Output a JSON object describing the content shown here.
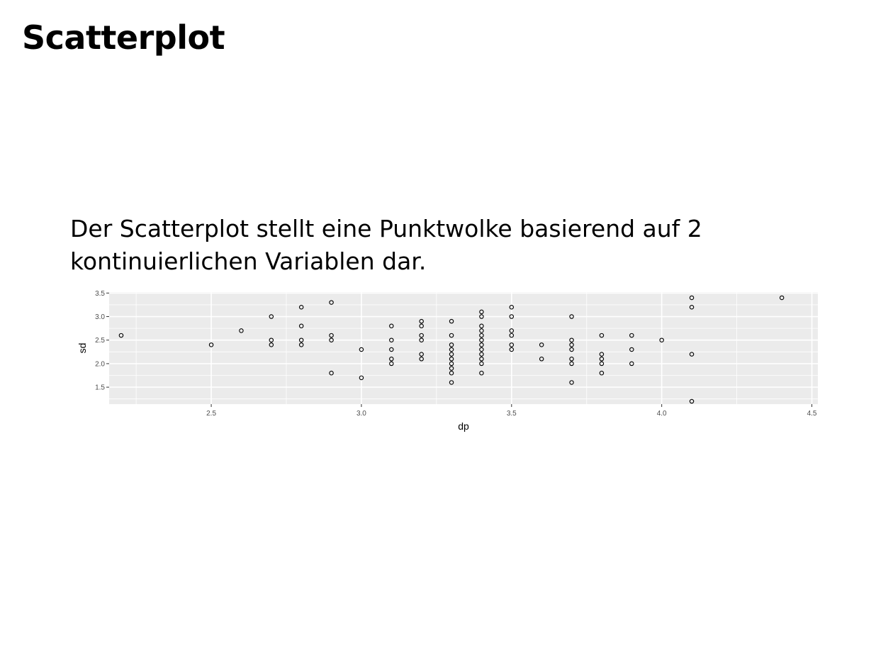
{
  "slide": {
    "title": "Scatterplot",
    "text": "Der Scatterplot stellt eine Punktwolke basierend auf 2 kontinuierlichen Variablen dar."
  },
  "colors": {
    "panel": "#ebebeb",
    "grid": "#ffffff",
    "point": "#000000",
    "tick": "#4d4d4d"
  },
  "chart_data": {
    "type": "scatter",
    "xlabel": "dp",
    "ylabel": "sd",
    "xlim": [
      2.16,
      4.52
    ],
    "ylim": [
      1.14,
      3.52
    ],
    "xticks": [
      2.5,
      3.0,
      3.5,
      4.0,
      4.5
    ],
    "xtick_labels": [
      "2.5",
      "3.0",
      "3.5",
      "4.0",
      "4.5"
    ],
    "yticks": [
      1.5,
      2.0,
      2.5,
      3.0,
      3.5
    ],
    "ytick_labels": [
      "1.5",
      "2.0",
      "2.5",
      "3.0",
      "3.5"
    ],
    "grid": true,
    "points": [
      [
        2.2,
        2.6
      ],
      [
        2.5,
        2.4
      ],
      [
        2.6,
        2.7
      ],
      [
        2.7,
        3.0
      ],
      [
        2.7,
        2.5
      ],
      [
        2.7,
        2.4
      ],
      [
        2.8,
        3.2
      ],
      [
        2.8,
        2.8
      ],
      [
        2.8,
        2.5
      ],
      [
        2.8,
        2.4
      ],
      [
        2.9,
        3.3
      ],
      [
        2.9,
        2.6
      ],
      [
        2.9,
        2.5
      ],
      [
        2.9,
        1.8
      ],
      [
        3.0,
        2.3
      ],
      [
        3.0,
        1.7
      ],
      [
        3.1,
        2.8
      ],
      [
        3.1,
        2.5
      ],
      [
        3.1,
        2.3
      ],
      [
        3.1,
        2.1
      ],
      [
        3.1,
        2.0
      ],
      [
        3.2,
        2.9
      ],
      [
        3.2,
        2.8
      ],
      [
        3.2,
        2.6
      ],
      [
        3.2,
        2.5
      ],
      [
        3.2,
        2.2
      ],
      [
        3.2,
        2.1
      ],
      [
        3.3,
        2.9
      ],
      [
        3.3,
        2.6
      ],
      [
        3.3,
        2.4
      ],
      [
        3.3,
        2.3
      ],
      [
        3.3,
        2.2
      ],
      [
        3.3,
        2.1
      ],
      [
        3.3,
        2.0
      ],
      [
        3.3,
        1.9
      ],
      [
        3.3,
        1.8
      ],
      [
        3.3,
        1.6
      ],
      [
        3.4,
        3.1
      ],
      [
        3.4,
        3.0
      ],
      [
        3.4,
        2.8
      ],
      [
        3.4,
        2.7
      ],
      [
        3.4,
        2.6
      ],
      [
        3.4,
        2.5
      ],
      [
        3.4,
        2.4
      ],
      [
        3.4,
        2.3
      ],
      [
        3.4,
        2.2
      ],
      [
        3.4,
        2.1
      ],
      [
        3.4,
        2.0
      ],
      [
        3.4,
        1.8
      ],
      [
        3.5,
        3.2
      ],
      [
        3.5,
        3.0
      ],
      [
        3.5,
        2.7
      ],
      [
        3.5,
        2.6
      ],
      [
        3.5,
        2.4
      ],
      [
        3.5,
        2.3
      ],
      [
        3.6,
        2.4
      ],
      [
        3.6,
        2.1
      ],
      [
        3.7,
        3.0
      ],
      [
        3.7,
        2.5
      ],
      [
        3.7,
        2.4
      ],
      [
        3.7,
        2.3
      ],
      [
        3.7,
        2.1
      ],
      [
        3.7,
        2.0
      ],
      [
        3.7,
        1.6
      ],
      [
        3.8,
        2.6
      ],
      [
        3.8,
        2.2
      ],
      [
        3.8,
        2.1
      ],
      [
        3.8,
        2.0
      ],
      [
        3.8,
        1.8
      ],
      [
        3.9,
        2.6
      ],
      [
        3.9,
        2.3
      ],
      [
        3.9,
        2.0
      ],
      [
        4.0,
        2.5
      ],
      [
        4.1,
        3.4
      ],
      [
        4.1,
        3.2
      ],
      [
        4.1,
        2.2
      ],
      [
        4.1,
        1.2
      ],
      [
        4.4,
        3.4
      ]
    ]
  }
}
